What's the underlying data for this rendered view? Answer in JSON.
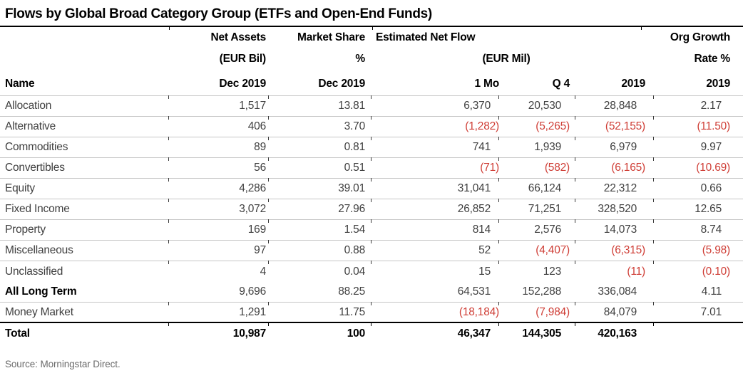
{
  "title": "Flows by Global Broad Category Group (ETFs and Open-End Funds)",
  "source": "Source: Morningstar Direct.",
  "colors": {
    "negative_value": "#cf3e36",
    "body_text": "#404040",
    "header_text": "#000000",
    "row_separator": "#c6c6c6"
  },
  "header": {
    "group_row": {
      "net_assets": "Net Assets",
      "market_share": "Market Share",
      "est_net_flow": "Estimated Net Flow",
      "org_growth": "Org Growth"
    },
    "unit_row": {
      "net_assets": "(EUR Bil)",
      "market_share": "%",
      "est_net_flow": "(EUR Mil)",
      "org_growth": "Rate %"
    },
    "col_row": [
      "Name",
      "Dec 2019",
      "Dec 2019",
      "1 Mo",
      "Q 4",
      "2019",
      "2019"
    ]
  },
  "chart_data": {
    "type": "table",
    "title": "Flows by Global Broad Category Group (ETFs and Open-End Funds)",
    "negative_format": "parentheses shown in red",
    "columns": [
      "Name",
      "Net Assets (EUR Bil) Dec 2019",
      "Market Share % Dec 2019",
      "Estimated Net Flow (EUR Mil) 1 Mo",
      "Estimated Net Flow (EUR Mil) Q 4",
      "Estimated Net Flow (EUR Mil) 2019",
      "Org Growth Rate % 2019"
    ],
    "rows": [
      {
        "name": "Allocation",
        "values": [
          "1,517",
          "13.81",
          "6,370",
          "20,530",
          "28,848",
          "2.17"
        ],
        "bold_name": false,
        "bold_values": false
      },
      {
        "name": "Alternative",
        "values": [
          "406",
          "3.70",
          "(1,282)",
          "(5,265)",
          "(52,155)",
          "(11.50)"
        ],
        "bold_name": false,
        "bold_values": false
      },
      {
        "name": "Commodities",
        "values": [
          "89",
          "0.81",
          "741",
          "1,939",
          "6,979",
          "9.97"
        ],
        "bold_name": false,
        "bold_values": false
      },
      {
        "name": "Convertibles",
        "values": [
          "56",
          "0.51",
          "(71)",
          "(582)",
          "(6,165)",
          "(10.69)"
        ],
        "bold_name": false,
        "bold_values": false
      },
      {
        "name": "Equity",
        "values": [
          "4,286",
          "39.01",
          "31,041",
          "66,124",
          "22,312",
          "0.66"
        ],
        "bold_name": false,
        "bold_values": false
      },
      {
        "name": "Fixed Income",
        "values": [
          "3,072",
          "27.96",
          "26,852",
          "71,251",
          "328,520",
          "12.65"
        ],
        "bold_name": false,
        "bold_values": false
      },
      {
        "name": "Property",
        "values": [
          "169",
          "1.54",
          "814",
          "2,576",
          "14,073",
          "8.74"
        ],
        "bold_name": false,
        "bold_values": false
      },
      {
        "name": "Miscellaneous",
        "values": [
          "97",
          "0.88",
          "52",
          "(4,407)",
          "(6,315)",
          "(5.98)"
        ],
        "bold_name": false,
        "bold_values": false
      },
      {
        "name": "Unclassified",
        "values": [
          "4",
          "0.04",
          "15",
          "123",
          "(11)",
          "(0.10)"
        ],
        "bold_name": false,
        "bold_values": false
      },
      {
        "name": "All Long Term",
        "values": [
          "9,696",
          "88.25",
          "64,531",
          "152,288",
          "336,084",
          "4.11"
        ],
        "bold_name": true,
        "bold_values": false
      },
      {
        "name": "Money Market",
        "values": [
          "1,291",
          "11.75",
          "(18,184)",
          "(7,984)",
          "84,079",
          "7.01"
        ],
        "bold_name": false,
        "bold_values": false
      },
      {
        "name": "Total",
        "values": [
          "10,987",
          "100",
          "46,347",
          "144,305",
          "420,163",
          ""
        ],
        "bold_name": true,
        "bold_values": true
      }
    ]
  }
}
